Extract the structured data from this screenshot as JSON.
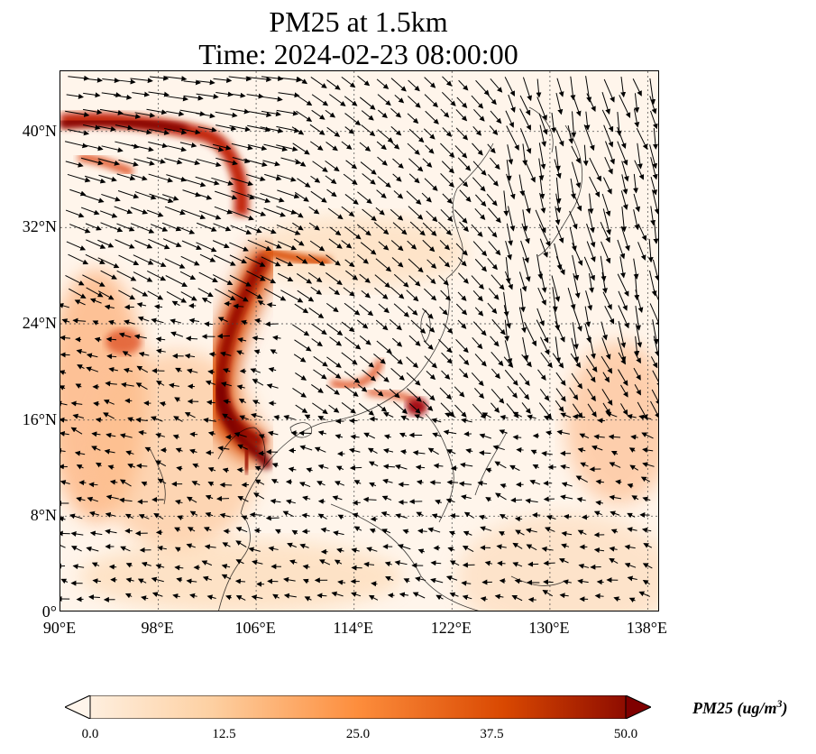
{
  "title_line1": "PM25 at 1.5km",
  "title_line2": "Time: 2024-02-23 08:00:00",
  "lon_ticks": [
    "90°E",
    "98°E",
    "106°E",
    "114°E",
    "122°E",
    "130°E",
    "138°E"
  ],
  "lat_ticks": [
    "40°N",
    "32°N",
    "24°N",
    "16°N",
    "8°N",
    "0°"
  ],
  "colorbar": {
    "label_main": "PM25 (ug/m",
    "label_exp": "3",
    "label_close": ")",
    "ticks": [
      "0.0",
      "12.5",
      "25.0",
      "37.5",
      "50.0"
    ],
    "colors": [
      "#fff5eb",
      "#fdd0a2",
      "#fd8d3c",
      "#d94801",
      "#7f0000"
    ]
  },
  "map_extent": {
    "lon_min": 90,
    "lon_max": 139,
    "lat_min": 0,
    "lat_max": 45
  },
  "colors": {
    "background": "#fff5eb",
    "arrow": "#000000",
    "coast": "#000000"
  }
}
